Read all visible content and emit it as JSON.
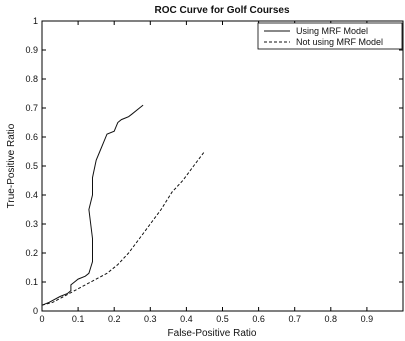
{
  "chart_data": {
    "type": "line",
    "title": "ROC Curve for Golf Courses",
    "xlabel": "False-Positive Ratio",
    "ylabel": "True-Positive Ratio",
    "xlim": [
      0,
      1
    ],
    "ylim": [
      0,
      1
    ],
    "xticks": [
      "0",
      "0.1",
      "0.2",
      "0.3",
      "0.4",
      "0.5",
      "0.6",
      "0.7",
      "0.8",
      "0.9"
    ],
    "yticks": [
      "0",
      "0.1",
      "0.2",
      "0.3",
      "0.4",
      "0.5",
      "0.6",
      "0.7",
      "0.8",
      "0.9",
      "1"
    ],
    "legend_position": "top-right",
    "series": [
      {
        "name": "Using MRF Model",
        "style": "solid",
        "x": [
          0.0,
          0.02,
          0.05,
          0.07,
          0.08,
          0.08,
          0.09,
          0.1,
          0.12,
          0.13,
          0.135,
          0.14,
          0.14,
          0.13,
          0.14,
          0.14,
          0.15,
          0.16,
          0.17,
          0.18,
          0.2,
          0.21,
          0.22,
          0.24,
          0.25,
          0.27,
          0.28
        ],
        "y": [
          0.02,
          0.03,
          0.05,
          0.06,
          0.07,
          0.09,
          0.1,
          0.11,
          0.12,
          0.13,
          0.15,
          0.17,
          0.25,
          0.35,
          0.4,
          0.46,
          0.52,
          0.55,
          0.58,
          0.61,
          0.62,
          0.65,
          0.66,
          0.67,
          0.68,
          0.7,
          0.71
        ]
      },
      {
        "name": "Not using MRF Model",
        "style": "dashed",
        "x": [
          0.0,
          0.03,
          0.06,
          0.09,
          0.12,
          0.15,
          0.18,
          0.21,
          0.24,
          0.27,
          0.3,
          0.33,
          0.36,
          0.39,
          0.42,
          0.45
        ],
        "y": [
          0.02,
          0.03,
          0.05,
          0.07,
          0.09,
          0.11,
          0.13,
          0.16,
          0.2,
          0.25,
          0.3,
          0.35,
          0.41,
          0.45,
          0.5,
          0.55
        ]
      }
    ]
  },
  "colors": {
    "axis": "#000000",
    "line": "#111111",
    "background": "#ffffff"
  }
}
